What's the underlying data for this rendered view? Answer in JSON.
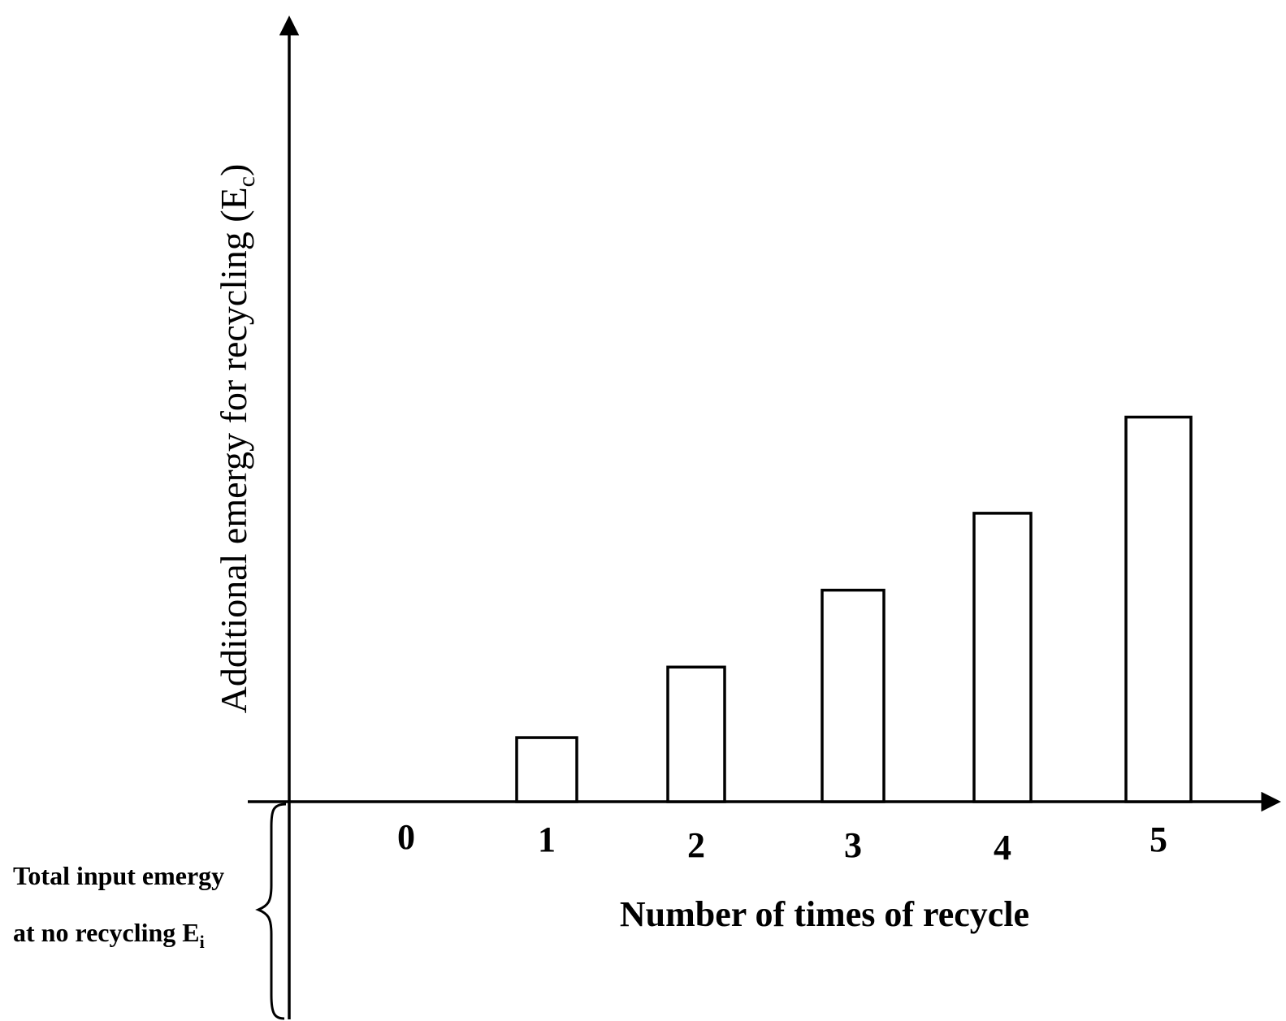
{
  "chart_data": {
    "type": "bar",
    "title": "",
    "xlabel": "Number of times of recycle",
    "ylabel": "Additional emergy for recycling (E",
    "ylabel_sub": "c",
    "ylabel_end": ")",
    "categories": [
      "0",
      "1",
      "2",
      "3",
      "4",
      "5"
    ],
    "values": [
      0,
      1.0,
      2.1,
      3.3,
      4.5,
      6.0
    ],
    "ylim": [
      0,
      12
    ],
    "grid": false,
    "legend": "none"
  },
  "annotation": {
    "line1": "Total input emergy",
    "line2": "at no recycling E",
    "line2_sub": "i"
  }
}
